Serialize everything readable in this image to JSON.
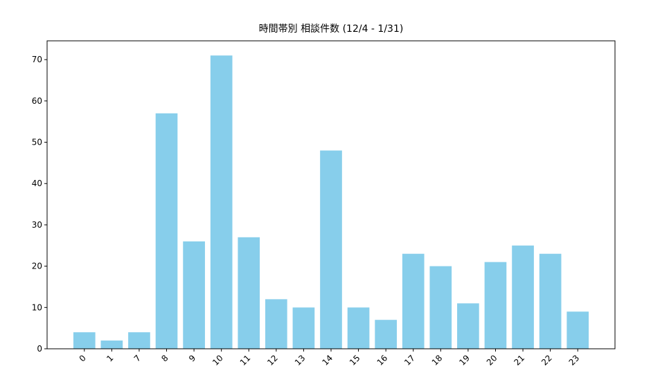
{
  "chart_data": {
    "type": "bar",
    "title": "時間帯別 相談件数 (12/4 - 1/31)",
    "categories": [
      "0",
      "1",
      "7",
      "8",
      "9",
      "10",
      "11",
      "12",
      "13",
      "14",
      "15",
      "16",
      "17",
      "18",
      "19",
      "20",
      "21",
      "22",
      "23"
    ],
    "values": [
      4,
      2,
      4,
      57,
      26,
      71,
      27,
      12,
      10,
      48,
      10,
      7,
      23,
      20,
      11,
      21,
      25,
      23,
      9
    ],
    "color": "#87ceeb",
    "ylim": [
      0,
      74.55
    ],
    "yticks": [
      0,
      10,
      20,
      30,
      40,
      50,
      60,
      70
    ],
    "grid": false
  }
}
